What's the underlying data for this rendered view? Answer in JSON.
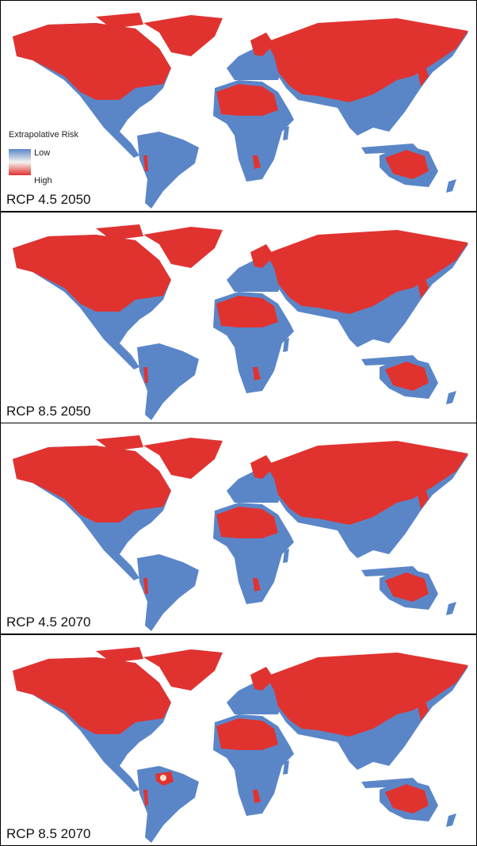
{
  "legend": {
    "title": "Extrapolative Risk",
    "low": "Low",
    "high": "High"
  },
  "panels": [
    {
      "label": "RCP 4.5 2050"
    },
    {
      "label": "RCP 8.5 2050"
    },
    {
      "label": "RCP 4.5 2070"
    },
    {
      "label": "RCP 8.5 2070"
    }
  ]
}
